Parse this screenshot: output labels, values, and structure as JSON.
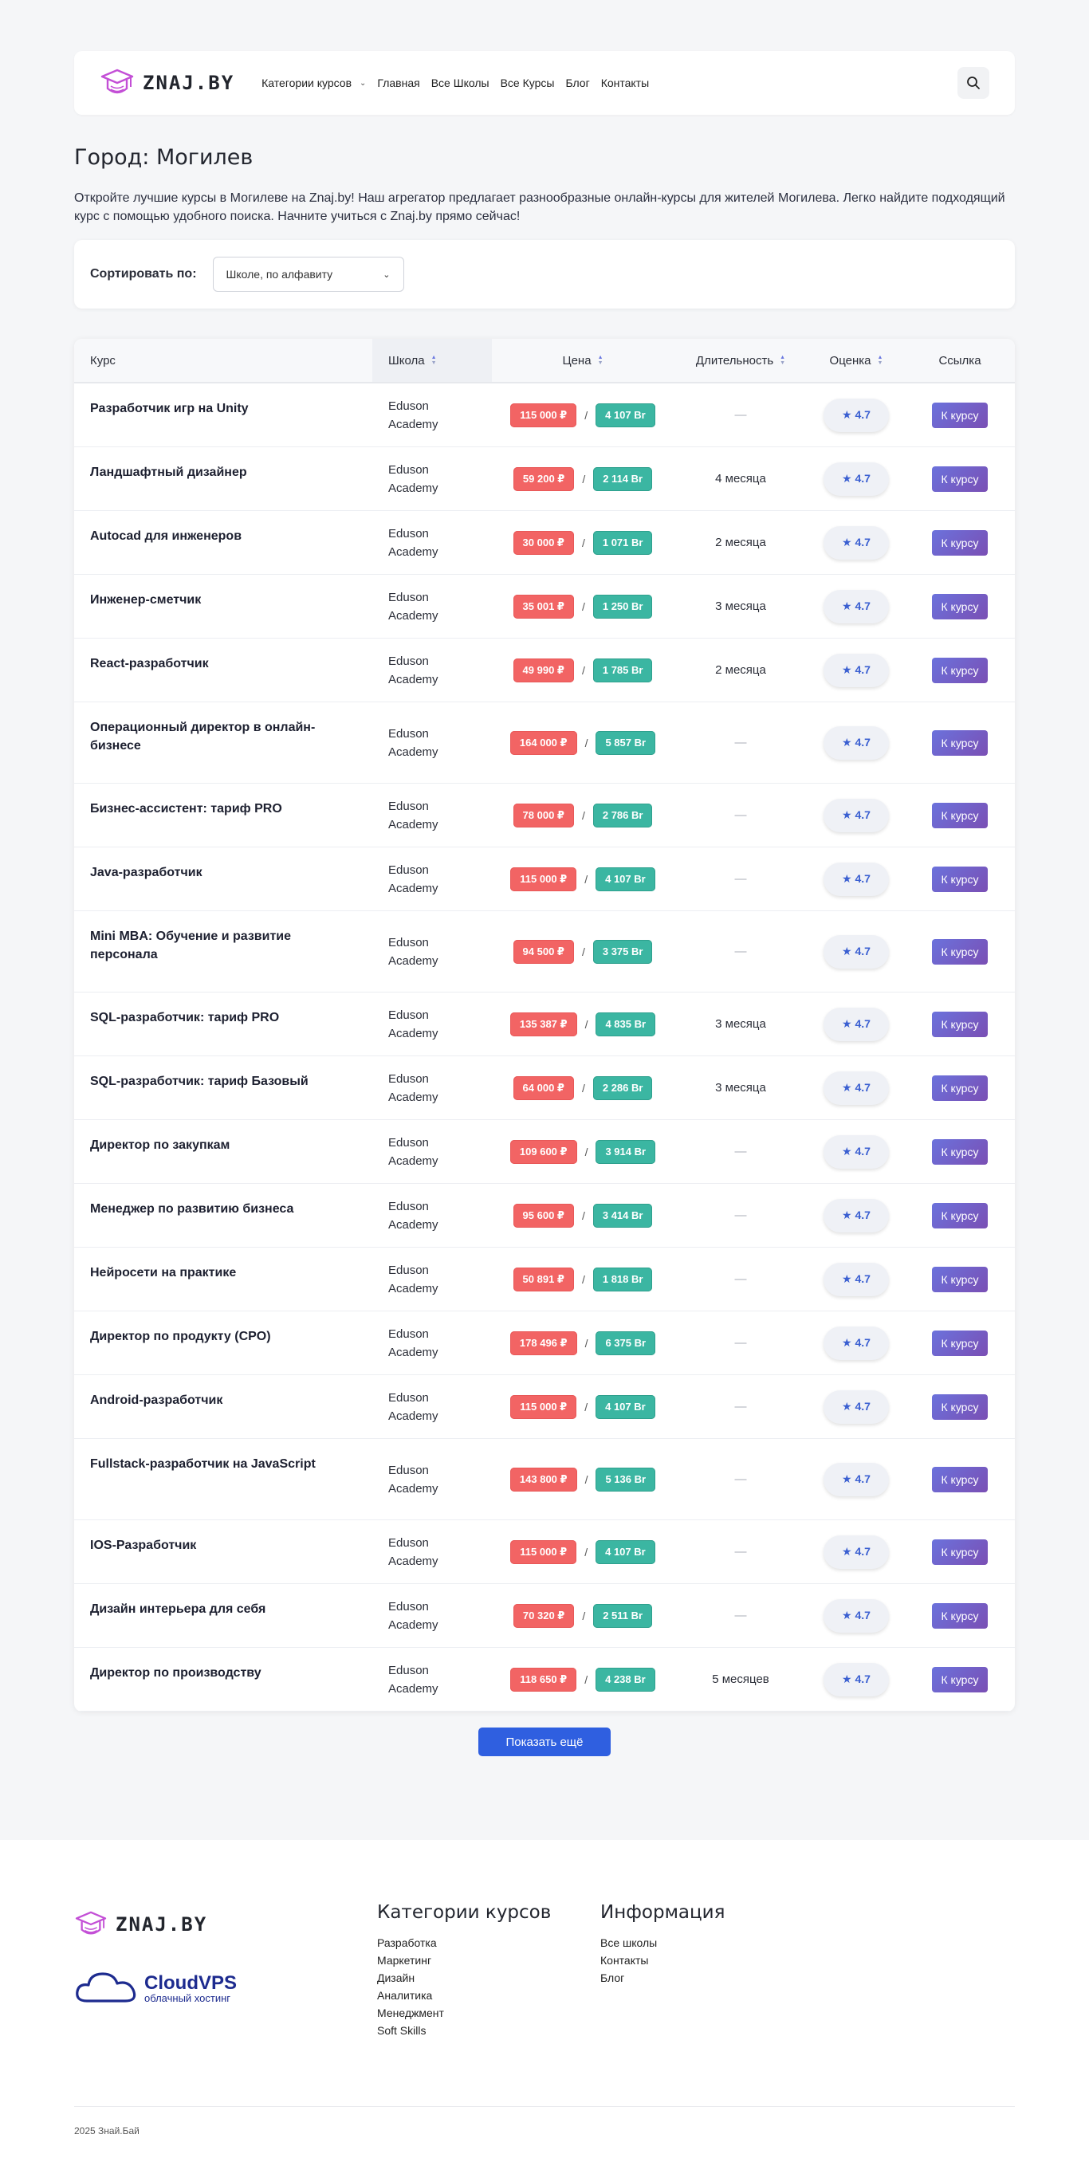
{
  "header": {
    "logo_text": "ZNAJ.BY",
    "nav": [
      {
        "label": "Категории курсов",
        "has_dropdown": true
      },
      {
        "label": "Главная"
      },
      {
        "label": "Все Школы"
      },
      {
        "label": "Все Курсы"
      },
      {
        "label": "Блог"
      },
      {
        "label": "Контакты"
      }
    ],
    "search_icon": "search-icon"
  },
  "page": {
    "title": "Город: Могилев",
    "intro": "Откройте лучшие курсы в Могилеве на Znaj.by! Наш агрегатор предлагает разнообразные онлайн-курсы для жителей Могилева. Легко найдите подходящий курс с помощью удобного поиска. Начните учиться с Znaj.by прямо сейчас!"
  },
  "sort": {
    "label": "Сортировать по:",
    "selected": "Школе, по алфавиту"
  },
  "table": {
    "headers": {
      "course": "Курс",
      "school": "Школа",
      "price": "Цена",
      "duration": "Длительность",
      "rating": "Оценка",
      "link": "Ссылка"
    },
    "link_label": "К курсу",
    "rows": [
      {
        "course": "Разработчик игр на Unity",
        "school": "Eduson Academy",
        "rub": "115 000 ₽",
        "byn": "4 107 Br",
        "duration": "—",
        "rating": "★ 4.7"
      },
      {
        "course": "Ландшафтный дизайнер",
        "school": "Eduson Academy",
        "rub": "59 200 ₽",
        "byn": "2 114 Br",
        "duration": "4 месяца",
        "rating": "★ 4.7"
      },
      {
        "course": "Autocad для инженеров",
        "school": "Eduson Academy",
        "rub": "30 000 ₽",
        "byn": "1 071 Br",
        "duration": "2 месяца",
        "rating": "★ 4.7"
      },
      {
        "course": "Инженер-сметчик",
        "school": "Eduson Academy",
        "rub": "35 001 ₽",
        "byn": "1 250 Br",
        "duration": "3 месяца",
        "rating": "★ 4.7"
      },
      {
        "course": "React-разработчик",
        "school": "Eduson Academy",
        "rub": "49 990 ₽",
        "byn": "1 785 Br",
        "duration": "2 месяца",
        "rating": "★ 4.7"
      },
      {
        "course": "Операционный директор в онлайн-бизнесе",
        "school": "Eduson Academy",
        "rub": "164 000 ₽",
        "byn": "5 857 Br",
        "duration": "—",
        "rating": "★ 4.7"
      },
      {
        "course": "Бизнес-ассистент: тариф PRO",
        "school": "Eduson Academy",
        "rub": "78 000 ₽",
        "byn": "2 786 Br",
        "duration": "—",
        "rating": "★ 4.7"
      },
      {
        "course": "Java-разработчик",
        "school": "Eduson Academy",
        "rub": "115 000 ₽",
        "byn": "4 107 Br",
        "duration": "—",
        "rating": "★ 4.7"
      },
      {
        "course": "Mini MBA: Обучение и развитие персонала",
        "school": "Eduson Academy",
        "rub": "94 500 ₽",
        "byn": "3 375 Br",
        "duration": "—",
        "rating": "★ 4.7"
      },
      {
        "course": "SQL-разработчик: тариф PRO",
        "school": "Eduson Academy",
        "rub": "135 387 ₽",
        "byn": "4 835 Br",
        "duration": "3 месяца",
        "rating": "★ 4.7"
      },
      {
        "course": "SQL-разработчик: тариф Базовый",
        "school": "Eduson Academy",
        "rub": "64 000 ₽",
        "byn": "2 286 Br",
        "duration": "3 месяца",
        "rating": "★ 4.7"
      },
      {
        "course": "Директор по закупкам",
        "school": "Eduson Academy",
        "rub": "109 600 ₽",
        "byn": "3 914 Br",
        "duration": "—",
        "rating": "★ 4.7"
      },
      {
        "course": "Менеджер по развитию бизнеса",
        "school": "Eduson Academy",
        "rub": "95 600 ₽",
        "byn": "3 414 Br",
        "duration": "—",
        "rating": "★ 4.7"
      },
      {
        "course": "Нейросети на практике",
        "school": "Eduson Academy",
        "rub": "50 891 ₽",
        "byn": "1 818 Br",
        "duration": "—",
        "rating": "★ 4.7"
      },
      {
        "course": "Директор по продукту (CPO)",
        "school": "Eduson Academy",
        "rub": "178 496 ₽",
        "byn": "6 375 Br",
        "duration": "—",
        "rating": "★ 4.7"
      },
      {
        "course": "Android-разработчик",
        "school": "Eduson Academy",
        "rub": "115 000 ₽",
        "byn": "4 107 Br",
        "duration": "—",
        "rating": "★ 4.7"
      },
      {
        "course": "Fullstack-разработчик на JavaScript",
        "school": "Eduson Academy",
        "rub": "143 800 ₽",
        "byn": "5 136 Br",
        "duration": "—",
        "rating": "★ 4.7"
      },
      {
        "course": "IOS-Разработчик",
        "school": "Eduson Academy",
        "rub": "115 000 ₽",
        "byn": "4 107 Br",
        "duration": "—",
        "rating": "★ 4.7"
      },
      {
        "course": "Дизайн интерьера для себя",
        "school": "Eduson Academy",
        "rub": "70 320 ₽",
        "byn": "2 511 Br",
        "duration": "—",
        "rating": "★ 4.7"
      },
      {
        "course": "Директор по производству",
        "school": "Eduson Academy",
        "rub": "118 650 ₽",
        "byn": "4 238 Br",
        "duration": "5 месяцев",
        "rating": "★ 4.7"
      }
    ]
  },
  "more_button": "Показать ещё",
  "footer": {
    "logo_text": "ZNAJ.BY",
    "partner_title": "CloudVPS",
    "partner_subtitle": "облачный хостинг",
    "categories_title": "Категории курсов",
    "categories": [
      "Разработка",
      "Маркетинг",
      "Дизайн",
      "Аналитика",
      "Менеджмент",
      "Soft Skills"
    ],
    "info_title": "Информация",
    "info": [
      "Все школы",
      "Контакты",
      "Блог"
    ],
    "copyright": "2025 Знай.Бай"
  },
  "colors": {
    "rub_badge": "#f26464",
    "byn_badge": "#3bb6a2",
    "link_button": "#6b72dc",
    "more_button": "#2f5fe0",
    "logo_accent": "#c34fd6"
  }
}
